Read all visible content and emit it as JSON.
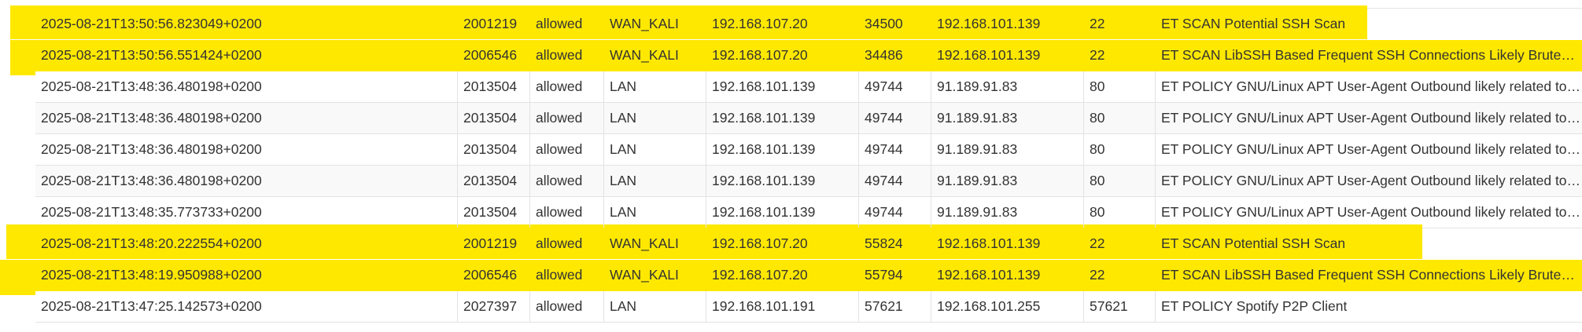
{
  "alerts": {
    "rows": [
      {
        "timestamp": "2025-08-21T13:50:56.823049+0200",
        "sid": "2001219",
        "action": "allowed",
        "interface": "WAN_KALI",
        "src_ip": "192.168.107.20",
        "src_port": "34500",
        "dst_ip": "192.168.101.139",
        "dst_port": "22",
        "alert": "ET SCAN Potential SSH Scan"
      },
      {
        "timestamp": "2025-08-21T13:50:56.551424+0200",
        "sid": "2006546",
        "action": "allowed",
        "interface": "WAN_KALI",
        "src_ip": "192.168.107.20",
        "src_port": "34486",
        "dst_ip": "192.168.101.139",
        "dst_port": "22",
        "alert": "ET SCAN LibSSH Based Frequent SSH Connections Likely BruteForce Attack"
      },
      {
        "timestamp": "2025-08-21T13:48:36.480198+0200",
        "sid": "2013504",
        "action": "allowed",
        "interface": "LAN",
        "src_ip": "192.168.101.139",
        "src_port": "49744",
        "dst_ip": "91.189.91.83",
        "dst_port": "80",
        "alert": "ET POLICY GNU/Linux APT User-Agent Outbound likely related to package management"
      },
      {
        "timestamp": "2025-08-21T13:48:36.480198+0200",
        "sid": "2013504",
        "action": "allowed",
        "interface": "LAN",
        "src_ip": "192.168.101.139",
        "src_port": "49744",
        "dst_ip": "91.189.91.83",
        "dst_port": "80",
        "alert": "ET POLICY GNU/Linux APT User-Agent Outbound likely related to package management"
      },
      {
        "timestamp": "2025-08-21T13:48:36.480198+0200",
        "sid": "2013504",
        "action": "allowed",
        "interface": "LAN",
        "src_ip": "192.168.101.139",
        "src_port": "49744",
        "dst_ip": "91.189.91.83",
        "dst_port": "80",
        "alert": "ET POLICY GNU/Linux APT User-Agent Outbound likely related to package management"
      },
      {
        "timestamp": "2025-08-21T13:48:36.480198+0200",
        "sid": "2013504",
        "action": "allowed",
        "interface": "LAN",
        "src_ip": "192.168.101.139",
        "src_port": "49744",
        "dst_ip": "91.189.91.83",
        "dst_port": "80",
        "alert": "ET POLICY GNU/Linux APT User-Agent Outbound likely related to package management"
      },
      {
        "timestamp": "2025-08-21T13:48:35.773733+0200",
        "sid": "2013504",
        "action": "allowed",
        "interface": "LAN",
        "src_ip": "192.168.101.139",
        "src_port": "49744",
        "dst_ip": "91.189.91.83",
        "dst_port": "80",
        "alert": "ET POLICY GNU/Linux APT User-Agent Outbound likely related to package management"
      },
      {
        "timestamp": "2025-08-21T13:48:20.222554+0200",
        "sid": "2001219",
        "action": "allowed",
        "interface": "WAN_KALI",
        "src_ip": "192.168.107.20",
        "src_port": "55824",
        "dst_ip": "192.168.101.139",
        "dst_port": "22",
        "alert": "ET SCAN Potential SSH Scan"
      },
      {
        "timestamp": "2025-08-21T13:48:19.950988+0200",
        "sid": "2006546",
        "action": "allowed",
        "interface": "WAN_KALI",
        "src_ip": "192.168.107.20",
        "src_port": "55794",
        "dst_ip": "192.168.101.139",
        "dst_port": "22",
        "alert": "ET SCAN LibSSH Based Frequent SSH Connections Likely BruteForce Attack"
      },
      {
        "timestamp": "2025-08-21T13:47:25.142573+0200",
        "sid": "2027397",
        "action": "allowed",
        "interface": "LAN",
        "src_ip": "192.168.101.191",
        "src_port": "57621",
        "dst_ip": "192.168.101.255",
        "dst_port": "57621",
        "alert": "ET POLICY Spotify P2P Client"
      }
    ]
  },
  "highlight": {
    "color": "#ffe800",
    "marked_rows": [
      0,
      1,
      7,
      8
    ]
  }
}
